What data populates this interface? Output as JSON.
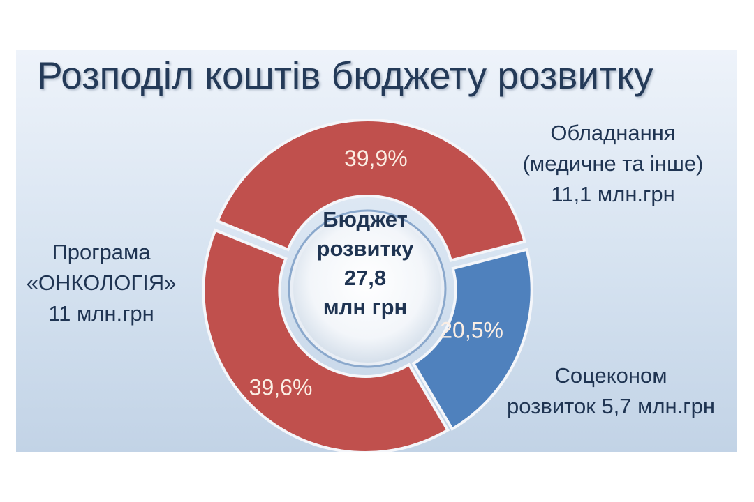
{
  "title": "Розподіл коштів бюджету розвитку",
  "center": {
    "line1": "Бюджет",
    "line2": "розвитку",
    "line3": "27,8",
    "line4": "млн грн"
  },
  "colors": {
    "red": "#c0504d",
    "blue": "#4f81bd",
    "label_text": "#1f3452"
  },
  "chart_data": {
    "type": "pie",
    "title": "Розподіл коштів бюджету розвитку",
    "total": 27.8,
    "total_unit": "млн грн",
    "slices": [
      {
        "label_lines": [
          "Обладнання",
          "(медичне та інше)",
          "11,1 млн.грн"
        ],
        "amount": 11.1,
        "percent": 39.9,
        "percent_label": "39,9%",
        "color": "#c0504d"
      },
      {
        "label_lines": [
          "Соцеконом",
          "розвиток 5,7 млн.грн"
        ],
        "amount": 5.7,
        "percent": 20.5,
        "percent_label": "20,5%",
        "color": "#4f81bd"
      },
      {
        "label_lines": [
          "Програма",
          "«ОНКОЛОГІЯ»",
          "11 млн.грн"
        ],
        "amount": 11.0,
        "percent": 39.6,
        "percent_label": "39,6%",
        "color": "#c0504d"
      }
    ]
  }
}
